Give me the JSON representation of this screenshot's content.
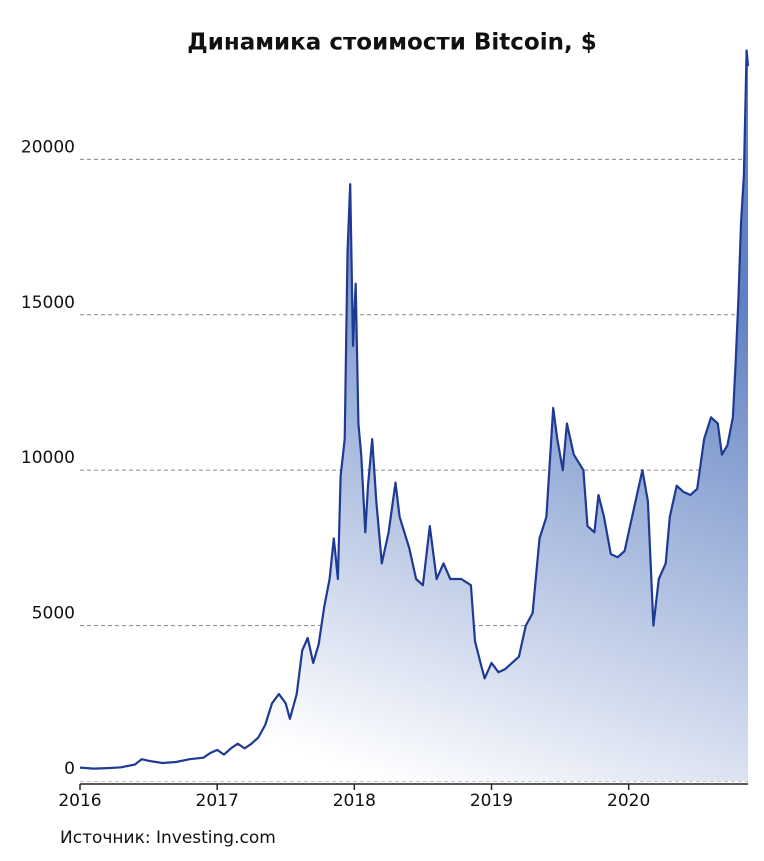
{
  "chart_data": {
    "type": "area",
    "title": "Динамика стоимости Bitcoin, $",
    "source": "Источник: Investing.com",
    "x": [
      2016.0,
      2016.1,
      2016.2,
      2016.3,
      2016.4,
      2016.45,
      2016.5,
      2016.6,
      2016.7,
      2016.8,
      2016.9,
      2016.95,
      2017.0,
      2017.05,
      2017.1,
      2017.15,
      2017.2,
      2017.25,
      2017.3,
      2017.35,
      2017.4,
      2017.45,
      2017.5,
      2017.53,
      2017.58,
      2017.62,
      2017.66,
      2017.7,
      2017.74,
      2017.78,
      2017.82,
      2017.85,
      2017.88,
      2017.9,
      2017.93,
      2017.95,
      2017.97,
      2017.99,
      2018.01,
      2018.03,
      2018.05,
      2018.08,
      2018.1,
      2018.13,
      2018.16,
      2018.2,
      2018.25,
      2018.3,
      2018.33,
      2018.4,
      2018.45,
      2018.5,
      2018.55,
      2018.6,
      2018.65,
      2018.7,
      2018.78,
      2018.85,
      2018.88,
      2018.92,
      2018.95,
      2019.0,
      2019.05,
      2019.1,
      2019.2,
      2019.25,
      2019.3,
      2019.35,
      2019.4,
      2019.45,
      2019.48,
      2019.52,
      2019.55,
      2019.6,
      2019.67,
      2019.7,
      2019.75,
      2019.78,
      2019.82,
      2019.87,
      2019.92,
      2019.97,
      2020.0,
      2020.05,
      2020.1,
      2020.14,
      2020.18,
      2020.22,
      2020.27,
      2020.3,
      2020.35,
      2020.4,
      2020.45,
      2020.5,
      2020.55,
      2020.6,
      2020.65,
      2020.68,
      2020.72,
      2020.76,
      2020.78,
      2020.8,
      2020.82,
      2020.84,
      2020.86,
      2020.87
    ],
    "series": [
      {
        "color": "#1f3a93",
        "values": [
          430,
          400,
          415,
          440,
          530,
          700,
          650,
          580,
          610,
          700,
          750,
          900,
          1000,
          850,
          1050,
          1200,
          1050,
          1200,
          1400,
          1800,
          2500,
          2800,
          2500,
          2000,
          2800,
          4200,
          4600,
          3800,
          4400,
          5600,
          6500,
          7800,
          6500,
          9800,
          11000,
          17000,
          19200,
          14000,
          16000,
          11500,
          10500,
          8000,
          9500,
          11000,
          9000,
          7000,
          8000,
          9600,
          8500,
          7500,
          6500,
          6300,
          8200,
          6500,
          7000,
          6500,
          6500,
          6300,
          4500,
          3800,
          3300,
          3800,
          3500,
          3600,
          4000,
          5000,
          5400,
          7800,
          8500,
          12000,
          11000,
          10000,
          11500,
          10500,
          10000,
          8200,
          8000,
          9200,
          8500,
          7300,
          7200,
          7400,
          8000,
          9000,
          10000,
          9000,
          5000,
          6500,
          7000,
          8500,
          9500,
          9300,
          9200,
          9400,
          11000,
          11700,
          11500,
          10500,
          10800,
          11700,
          13500,
          15500,
          18000,
          19500,
          23500,
          23000
        ]
      }
    ],
    "xlim": [
      2016,
      2020.87
    ],
    "xticks": [
      2016,
      2017,
      2018,
      2019,
      2020
    ],
    "ylim": [
      0,
      24000
    ],
    "yticks": [
      0,
      5000,
      10000,
      15000,
      20000
    ],
    "grid": true
  }
}
